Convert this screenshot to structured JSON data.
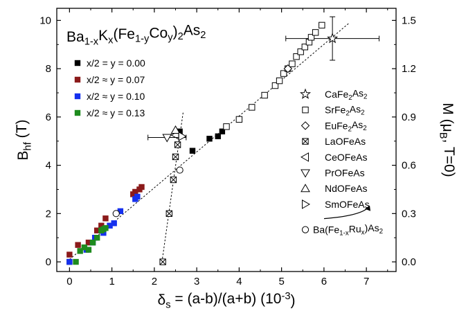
{
  "chart_data": {
    "type": "scatter",
    "title": {
      "parts": [
        [
          "Ba",
          ""
        ],
        [
          "1-x",
          "sub"
        ],
        [
          "K",
          ""
        ],
        [
          "x",
          "sub"
        ],
        [
          "(Fe",
          ""
        ],
        [
          "1-y",
          "sub"
        ],
        [
          "Co",
          ""
        ],
        [
          "y",
          "sub"
        ],
        [
          ")",
          ""
        ],
        [
          "2",
          "sub"
        ],
        [
          "As",
          ""
        ],
        [
          "2",
          "sub"
        ]
      ]
    },
    "xlabel": {
      "parts": [
        [
          "δ",
          ""
        ],
        [
          "s",
          "sub"
        ],
        [
          " = (a-b)/(a+b)  (10",
          ""
        ],
        [
          "-3",
          "sup"
        ],
        [
          ")",
          ""
        ]
      ]
    },
    "ylabel": {
      "parts": [
        [
          "B",
          ""
        ],
        [
          "hf",
          "sub"
        ],
        [
          " (T)",
          ""
        ]
      ]
    },
    "y2label": {
      "parts": [
        [
          "M (μ",
          ""
        ],
        [
          "B",
          "sub"
        ],
        [
          ", T=0)",
          ""
        ]
      ]
    },
    "xlim": [
      -0.3,
      7.7
    ],
    "ylim": [
      -0.4,
      10.5
    ],
    "y2lim": [
      -0.06,
      1.575
    ],
    "xticks": [
      0,
      1,
      2,
      3,
      4,
      5,
      6,
      7
    ],
    "yticks": [
      0,
      2,
      4,
      6,
      8,
      10
    ],
    "y2ticks": [
      "0.0",
      "0.3",
      "0.6",
      "0.9",
      "1.2",
      "1.5"
    ],
    "colors": {
      "black": "#000000",
      "red": "#8b1a1a",
      "blue": "#1530ee",
      "green": "#1e8b1e"
    },
    "series": [
      {
        "name": "x/2 = y = 0.00",
        "marker": "square-filled",
        "color": "#000000",
        "points": [
          [
            0.0,
            0.0
          ],
          [
            2.9,
            4.6
          ],
          [
            3.3,
            5.1
          ],
          [
            3.5,
            5.2
          ],
          [
            3.6,
            5.4
          ],
          [
            2.6,
            5.4
          ]
        ]
      },
      {
        "name": "x/2 ≈ y = 0.07",
        "marker": "square-filled",
        "color": "#8b1a1a",
        "points": [
          [
            0.0,
            0.3
          ],
          [
            0.2,
            0.7
          ],
          [
            0.45,
            0.8
          ],
          [
            0.65,
            1.3
          ],
          [
            0.75,
            1.5
          ],
          [
            0.85,
            1.8
          ],
          [
            1.5,
            2.8
          ],
          [
            1.55,
            2.9
          ],
          [
            1.65,
            3.0
          ],
          [
            1.7,
            3.1
          ]
        ]
      },
      {
        "name": "x/2 ≈ y = 0.10",
        "marker": "square-filled",
        "color": "#1530ee",
        "points": [
          [
            0.0,
            0.0
          ],
          [
            0.4,
            0.5
          ],
          [
            0.55,
            0.8
          ],
          [
            0.6,
            1.0
          ],
          [
            0.8,
            1.2
          ],
          [
            0.95,
            1.5
          ],
          [
            1.05,
            1.6
          ],
          [
            1.2,
            2.1
          ],
          [
            1.55,
            2.6
          ],
          [
            1.6,
            2.7
          ]
        ]
      },
      {
        "name": "x/2 ≈ y = 0.13",
        "marker": "square-filled",
        "color": "#1e8b1e",
        "points": [
          [
            0.15,
            0.0
          ],
          [
            0.25,
            0.45
          ],
          [
            0.35,
            0.6
          ],
          [
            0.45,
            0.5
          ],
          [
            0.55,
            0.8
          ],
          [
            0.65,
            1.0
          ],
          [
            0.75,
            1.3
          ],
          [
            0.8,
            1.35
          ],
          [
            0.85,
            1.4
          ]
        ]
      },
      {
        "name": "CaFe2As2",
        "label_parts": [
          [
            "CaFe",
            ""
          ],
          [
            "2",
            "sub"
          ],
          [
            "As",
            ""
          ],
          [
            "2",
            "sub"
          ]
        ],
        "marker": "star",
        "color": "#000000",
        "points": [
          [
            6.2,
            9.25
          ]
        ],
        "xerr": 1.1,
        "yerr": 0.9
      },
      {
        "name": "SrFe2As2",
        "label_parts": [
          [
            "SrFe",
            ""
          ],
          [
            "2",
            "sub"
          ],
          [
            "As",
            ""
          ],
          [
            "2",
            "sub"
          ]
        ],
        "marker": "square-open",
        "color": "#000000",
        "points": [
          [
            3.7,
            5.6
          ],
          [
            4.0,
            5.9
          ],
          [
            4.3,
            6.4
          ],
          [
            4.6,
            6.9
          ],
          [
            4.85,
            7.3
          ],
          [
            4.95,
            7.5
          ],
          [
            5.05,
            7.8
          ],
          [
            5.15,
            8.0
          ],
          [
            5.25,
            8.2
          ],
          [
            5.35,
            8.5
          ],
          [
            5.45,
            8.7
          ],
          [
            5.55,
            8.9
          ],
          [
            5.65,
            9.1
          ],
          [
            5.7,
            9.3
          ],
          [
            5.8,
            9.5
          ],
          [
            5.95,
            9.8
          ]
        ]
      },
      {
        "name": "EuFe2As2",
        "label_parts": [
          [
            "EuFe",
            ""
          ],
          [
            "2",
            "sub"
          ],
          [
            "As",
            ""
          ],
          [
            "2",
            "sub"
          ]
        ],
        "marker": "diamond-open",
        "color": "#000000",
        "points": [
          [
            5.15,
            8.0
          ]
        ]
      },
      {
        "name": "LaOFeAs",
        "marker": "square-x",
        "color": "#000000",
        "points": [
          [
            2.2,
            0.0
          ],
          [
            2.35,
            2.0
          ],
          [
            2.45,
            3.4
          ],
          [
            2.5,
            4.35
          ],
          [
            2.55,
            4.85
          ]
        ]
      },
      {
        "name": "CeOFeAs",
        "marker": "triangle-left",
        "color": "#000000",
        "points": [
          [
            2.5,
            5.25
          ]
        ]
      },
      {
        "name": "PrOFeAs",
        "marker": "triangle-down",
        "color": "#000000",
        "points": [
          [
            2.3,
            5.15
          ]
        ],
        "xerr": 0.45
      },
      {
        "name": "NdOFeAs",
        "marker": "triangle-up",
        "color": "#000000",
        "points": [
          [
            2.5,
            5.45
          ]
        ]
      },
      {
        "name": "SmOFeAs",
        "marker": "triangle-right",
        "color": "#000000",
        "points": [
          [
            2.65,
            5.2
          ]
        ]
      },
      {
        "name": "Ba(Fe1-xRux)As2",
        "label_parts": [
          [
            "Ba(Fe",
            ""
          ],
          [
            "1-x",
            "sub"
          ],
          [
            "Ru",
            ""
          ],
          [
            "x",
            "sub"
          ],
          [
            ")As",
            ""
          ],
          [
            "2",
            "sub"
          ]
        ],
        "marker": "circle-open",
        "color": "#000000",
        "points": [
          [
            1.1,
            2.0
          ],
          [
            2.6,
            3.8
          ]
        ]
      }
    ],
    "fits": [
      {
        "name": "main-fit",
        "from": [
          0.0,
          0.1
        ],
        "to": [
          6.6,
          9.9
        ]
      },
      {
        "name": "oxypnictide-fit",
        "from": [
          2.18,
          0.0
        ],
        "to": [
          2.68,
          6.2
        ]
      }
    ],
    "legend_left_placement": "upper-left",
    "legend_right_placement": "right-side",
    "grid": false
  }
}
